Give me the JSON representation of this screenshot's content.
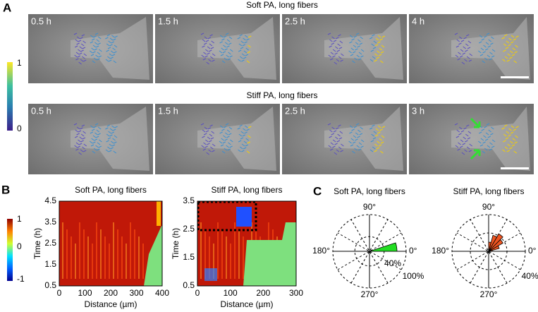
{
  "panel_a": {
    "label": "A",
    "rows": [
      {
        "title": "Soft PA, long fibers",
        "frames": [
          "0.5 h",
          "1.5 h",
          "2.5 h",
          "4 h"
        ]
      },
      {
        "title": "Stiff PA, long fibers",
        "frames": [
          "0.5 h",
          "1.5 h",
          "2.5 h",
          "3 h"
        ]
      }
    ],
    "colorbar": [
      "1",
      "0"
    ]
  },
  "panel_b": {
    "label": "B",
    "colorbar": [
      "1",
      "0",
      "-1"
    ],
    "plots": [
      {
        "title": "Soft PA, long fibers",
        "xlabel": "Distance (µm)",
        "ylabel": "Time (h)",
        "xticks": [
          "0",
          "100",
          "200",
          "300",
          "400"
        ],
        "yticks": [
          "0.5",
          "1.5",
          "2.5",
          "3.5",
          "4.5"
        ]
      },
      {
        "title": "Stiff PA, long fibers",
        "xlabel": "Distance (µm)",
        "ylabel": "Time (h)",
        "xticks": [
          "0",
          "100",
          "200",
          "300"
        ],
        "yticks": [
          "0.5",
          "1.5",
          "2.5",
          "3.5"
        ]
      }
    ]
  },
  "panel_c": {
    "label": "C",
    "plots": [
      {
        "title": "Soft PA, long fibers",
        "angles": [
          "90°",
          "180°",
          "270°",
          "0°"
        ],
        "rings": [
          {
            "value": 40,
            "label": "40%"
          },
          {
            "value": 100,
            "label": "100%"
          }
        ],
        "color": "#22dd22",
        "sectors": [
          {
            "from": 0,
            "to": 18,
            "value": 75
          }
        ]
      },
      {
        "title": "Stiff PA, long fibers",
        "angles": [
          "90°",
          "180°",
          "270°",
          "0°"
        ],
        "rings": [
          {
            "value": 40,
            "label": "40%"
          }
        ],
        "color": "#ee5522",
        "sectors": [
          {
            "from": 0,
            "to": 15,
            "value": 4
          },
          {
            "from": 15,
            "to": 30,
            "value": 12
          },
          {
            "from": 30,
            "to": 45,
            "value": 18
          },
          {
            "from": 45,
            "to": 60,
            "value": 22
          },
          {
            "from": 60,
            "to": 75,
            "value": 18
          },
          {
            "from": 75,
            "to": 90,
            "value": 10
          }
        ]
      }
    ]
  }
}
